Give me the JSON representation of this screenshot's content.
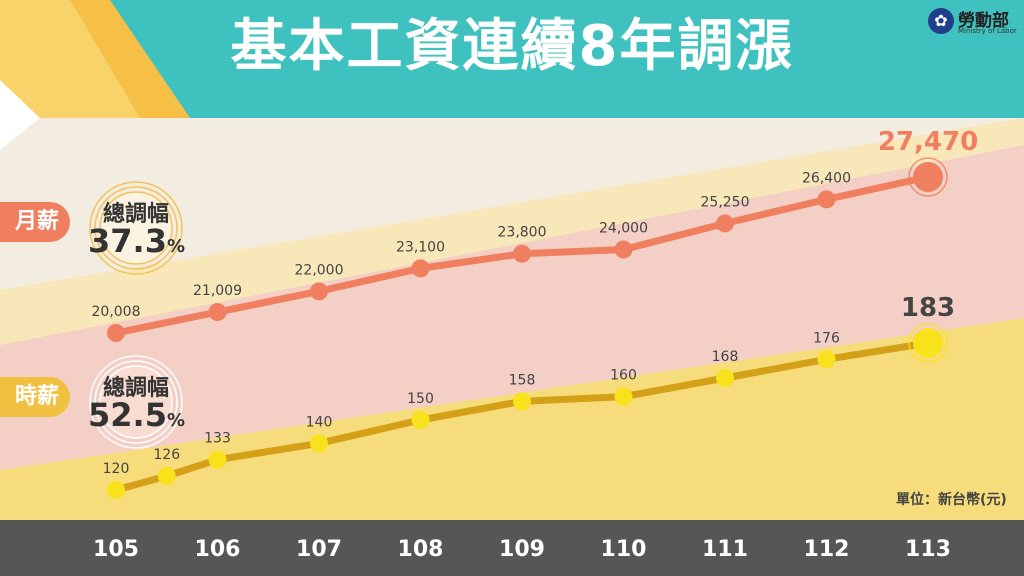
{
  "title": "基本工資連續8年調漲",
  "logo": {
    "name": "勞動部",
    "sub": "Ministry of Labor"
  },
  "unit_note": "單位：新台幣(元)",
  "tags": {
    "monthly": "月薪",
    "hourly": "時薪"
  },
  "badges": {
    "monthly": {
      "label": "總調幅",
      "value": "37.3",
      "suffix": "%"
    },
    "hourly": {
      "label": "總調幅",
      "value": "52.5",
      "suffix": "%"
    }
  },
  "colors": {
    "monthly": "#ef7f5e",
    "hourly": "#f7e21b",
    "hourly_line": "#d4a017",
    "header": "#3fc1bf",
    "axis_bar": "#565656"
  },
  "chart_data": {
    "type": "line",
    "x_tick_labels": [
      "105",
      "106",
      "107",
      "108",
      "109",
      "110",
      "111",
      "112",
      "113"
    ],
    "series": [
      {
        "key": "monthly",
        "x": [
          105,
          106,
          107,
          108,
          109,
          110,
          111,
          112,
          113
        ],
        "values": [
          20008,
          21009,
          22000,
          23100,
          23800,
          24000,
          25250,
          26400,
          27470
        ],
        "labels": [
          "20,008",
          "21,009",
          "22,000",
          "23,100",
          "23,800",
          "24,000",
          "25,250",
          "26,400",
          "27,470"
        ]
      },
      {
        "key": "hourly",
        "x": [
          105,
          105.5,
          106,
          107,
          108,
          109,
          110,
          111,
          112,
          113
        ],
        "values": [
          120,
          126,
          133,
          140,
          150,
          158,
          160,
          168,
          176,
          183
        ],
        "labels": [
          "120",
          "126",
          "133",
          "140",
          "150",
          "158",
          "160",
          "168",
          "176",
          "183"
        ]
      }
    ],
    "xlabel": "",
    "ylabel": "",
    "grid": false
  }
}
